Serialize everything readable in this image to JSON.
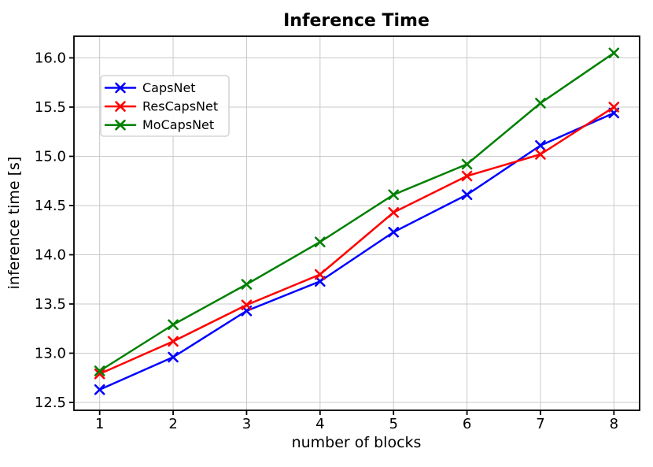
{
  "chart_data": {
    "type": "line",
    "title": "Inference Time",
    "xlabel": "number of blocks",
    "ylabel": "inference time [s]",
    "x": [
      1,
      2,
      3,
      4,
      5,
      6,
      7,
      8
    ],
    "series": [
      {
        "name": "CapsNet",
        "color": "#0000FF",
        "values": [
          12.63,
          12.96,
          13.43,
          13.73,
          14.23,
          14.61,
          15.11,
          15.44
        ]
      },
      {
        "name": "ResCapsNet",
        "color": "#FF0000",
        "values": [
          12.79,
          13.12,
          13.49,
          13.8,
          14.43,
          14.8,
          15.02,
          15.5
        ]
      },
      {
        "name": "MoCapsNet",
        "color": "#008000",
        "values": [
          12.82,
          13.29,
          13.7,
          14.13,
          14.61,
          14.92,
          15.54,
          16.05
        ]
      }
    ],
    "xticks": [
      1,
      2,
      3,
      4,
      5,
      6,
      7,
      8
    ],
    "yticks": [
      12.5,
      13.0,
      13.5,
      14.0,
      14.5,
      15.0,
      15.5,
      16.0
    ],
    "xlim": [
      0.65,
      8.35
    ],
    "ylim": [
      12.42,
      16.22
    ],
    "grid": true,
    "legend_position": "upper left",
    "marker": "x",
    "colors": {
      "grid": "#c9c9c9",
      "spine": "#000000",
      "background": "#ffffff",
      "text": "#000000"
    }
  }
}
